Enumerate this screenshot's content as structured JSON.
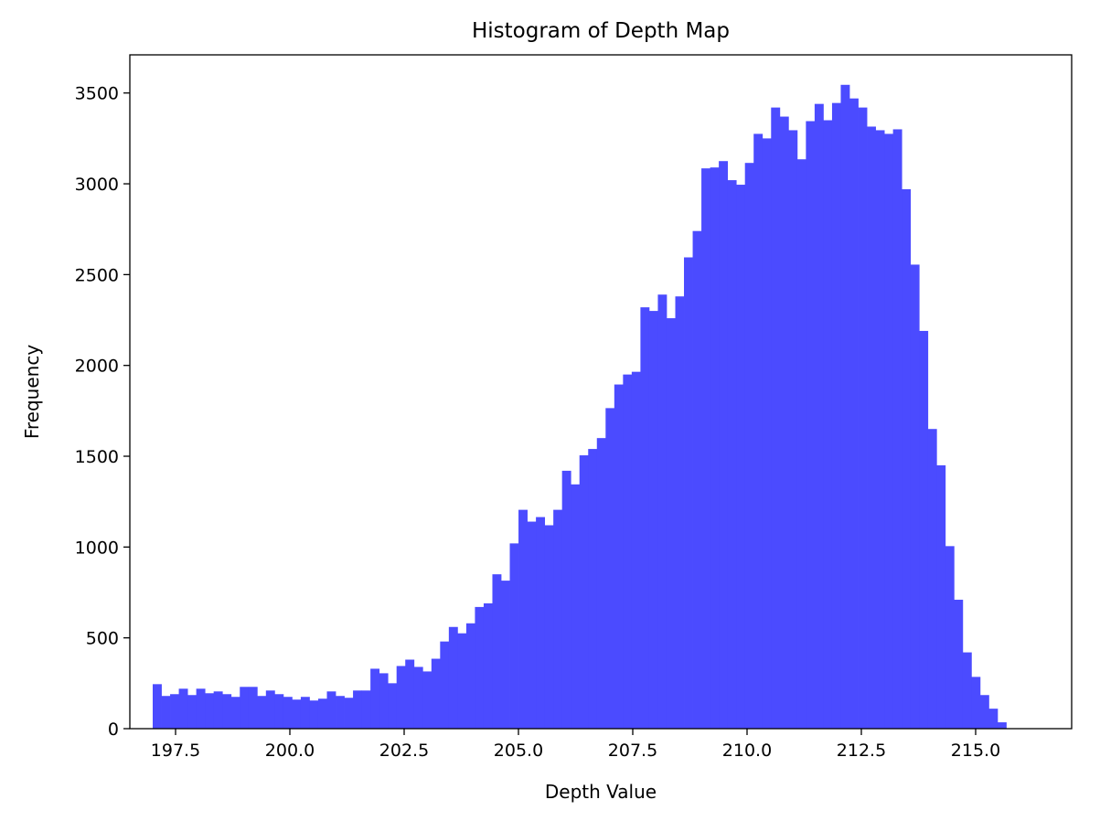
{
  "chart_data": {
    "type": "bar",
    "title": "Histogram of Depth Map",
    "xlabel": "Depth Value",
    "ylabel": "Frequency",
    "xlim": [
      196.5,
      217.1
    ],
    "ylim": [
      0,
      3710
    ],
    "xticks": [
      197.5,
      200.0,
      202.5,
      205.0,
      207.5,
      210.0,
      212.5,
      215.0
    ],
    "xtick_labels": [
      "197.5",
      "200.0",
      "202.5",
      "205.0",
      "207.5",
      "210.0",
      "212.5",
      "215.0"
    ],
    "yticks": [
      0,
      500,
      1000,
      1500,
      2000,
      2500,
      3000,
      3500
    ],
    "ytick_labels": [
      "0",
      "500",
      "1000",
      "1500",
      "2000",
      "2500",
      "3000",
      "3500"
    ],
    "grid": false,
    "color": "#4b4bff",
    "bin_start": 197.0,
    "bin_width": 0.1905,
    "values": [
      245,
      180,
      190,
      220,
      185,
      220,
      195,
      205,
      190,
      175,
      230,
      230,
      180,
      210,
      190,
      175,
      160,
      175,
      155,
      165,
      205,
      180,
      170,
      210,
      210,
      330,
      305,
      250,
      345,
      380,
      340,
      315,
      385,
      480,
      560,
      525,
      580,
      670,
      690,
      850,
      815,
      1020,
      1205,
      1140,
      1165,
      1120,
      1205,
      1420,
      1345,
      1505,
      1540,
      1600,
      1765,
      1895,
      1950,
      1965,
      2320,
      2300,
      2390,
      2260,
      2380,
      2595,
      2740,
      3085,
      3090,
      3125,
      3020,
      2995,
      3115,
      3275,
      3250,
      3420,
      3370,
      3295,
      3135,
      3345,
      3440,
      3350,
      3445,
      3545,
      3470,
      3420,
      3315,
      3295,
      3275,
      3300,
      2970,
      2555,
      2190,
      1650,
      1450,
      1005,
      710,
      420,
      285,
      185,
      110,
      35
    ]
  }
}
